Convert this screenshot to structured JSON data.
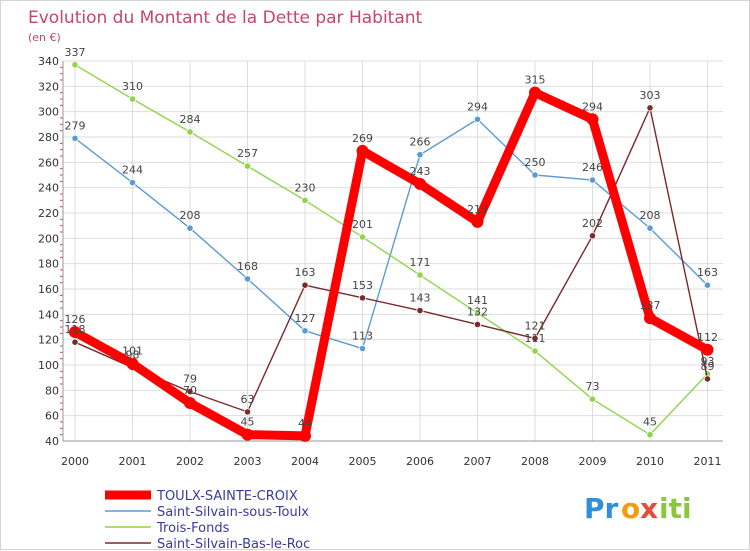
{
  "chart_data": {
    "type": "line",
    "title": "Evolution du Montant de la Dette par Habitant",
    "subtitle": "(en €)",
    "x": [
      "2000",
      "2001",
      "2002",
      "2003",
      "2004",
      "2005",
      "2006",
      "2007",
      "2008",
      "2009",
      "2010",
      "2011"
    ],
    "ylim": [
      40,
      340
    ],
    "yticks": [
      "40",
      "60",
      "80",
      "100",
      "120",
      "140",
      "160",
      "180",
      "200",
      "220",
      "240",
      "260",
      "280",
      "300",
      "320",
      "340"
    ],
    "grid": true,
    "legend_position": "bottom-left",
    "series": [
      {
        "name": "TOULX-SAINTE-CROIX",
        "color": "#ff0000",
        "values": [
          126,
          101,
          70,
          45,
          44,
          269,
          243,
          213,
          315,
          294,
          137,
          112
        ],
        "labels": [
          "126",
          "101",
          "70",
          "45",
          "44",
          "269",
          "243",
          "213",
          "315",
          "294",
          "137",
          "112"
        ]
      },
      {
        "name": "Saint-Silvain-sous-Toulx",
        "color": "#5b9bd5",
        "values": [
          279,
          244,
          208,
          168,
          127,
          113,
          266,
          294,
          250,
          246,
          208,
          163
        ],
        "labels": [
          "279",
          "244",
          "208",
          "168",
          "127",
          "113",
          "266",
          "294",
          "250",
          "246",
          "208",
          "163"
        ]
      },
      {
        "name": "Trois-Fonds",
        "color": "#8fd44a",
        "values": [
          337,
          310,
          284,
          257,
          230,
          201,
          171,
          141,
          111,
          73,
          45,
          93
        ],
        "labels": [
          "337",
          "310",
          "284",
          "257",
          "230",
          "201",
          "171",
          "141",
          "111",
          "73",
          "45",
          "93"
        ]
      },
      {
        "name": "Saint-Silvain-Bas-le-Roc",
        "color": "#7a2a2a",
        "values": [
          118,
          98,
          79,
          63,
          163,
          153,
          143,
          132,
          121,
          202,
          303,
          89
        ],
        "labels": [
          "118",
          "98",
          "79",
          "63",
          "163",
          "153",
          "143",
          "132",
          "121",
          "202",
          "303",
          "89"
        ]
      }
    ]
  },
  "logo": {
    "text_a": "Pr",
    "text_b": "o",
    "text_c": "x",
    "text_d": "iti"
  }
}
